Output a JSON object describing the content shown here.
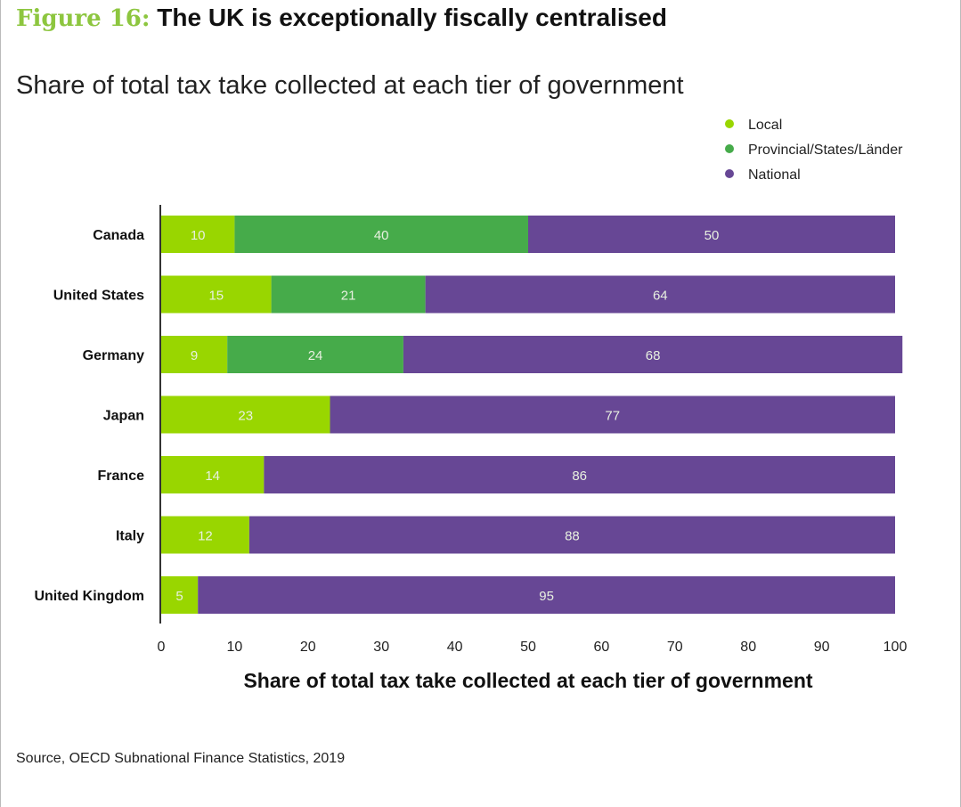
{
  "header": {
    "figure_label": "Figure 16:",
    "title": "The UK is exceptionally fiscally centralised",
    "subtitle": "Share of total tax take collected at each tier of government"
  },
  "footer": {
    "source": "Source, OECD Subnational Finance Statistics, 2019"
  },
  "chart_data": {
    "type": "bar",
    "orientation": "horizontal",
    "stacked": true,
    "categories": [
      "Canada",
      "United States",
      "Germany",
      "Japan",
      "France",
      "Italy",
      "United Kingdom"
    ],
    "series": [
      {
        "name": "Local",
        "color": "#99d600",
        "values": [
          10,
          15,
          9,
          23,
          14,
          12,
          5
        ]
      },
      {
        "name": "Provincial/States/Länder",
        "color": "#46ab4a",
        "values": [
          40,
          21,
          24,
          0,
          0,
          0,
          0
        ]
      },
      {
        "name": "National",
        "color": "#674795",
        "values": [
          50,
          64,
          68,
          77,
          86,
          88,
          95
        ]
      }
    ],
    "xlabel": "Share of total tax take collected at each tier of government",
    "xlim": [
      0,
      100
    ],
    "xticks": [
      0,
      10,
      20,
      30,
      40,
      50,
      60,
      70,
      80,
      90,
      100
    ],
    "grid": false,
    "legend": "top-right"
  }
}
